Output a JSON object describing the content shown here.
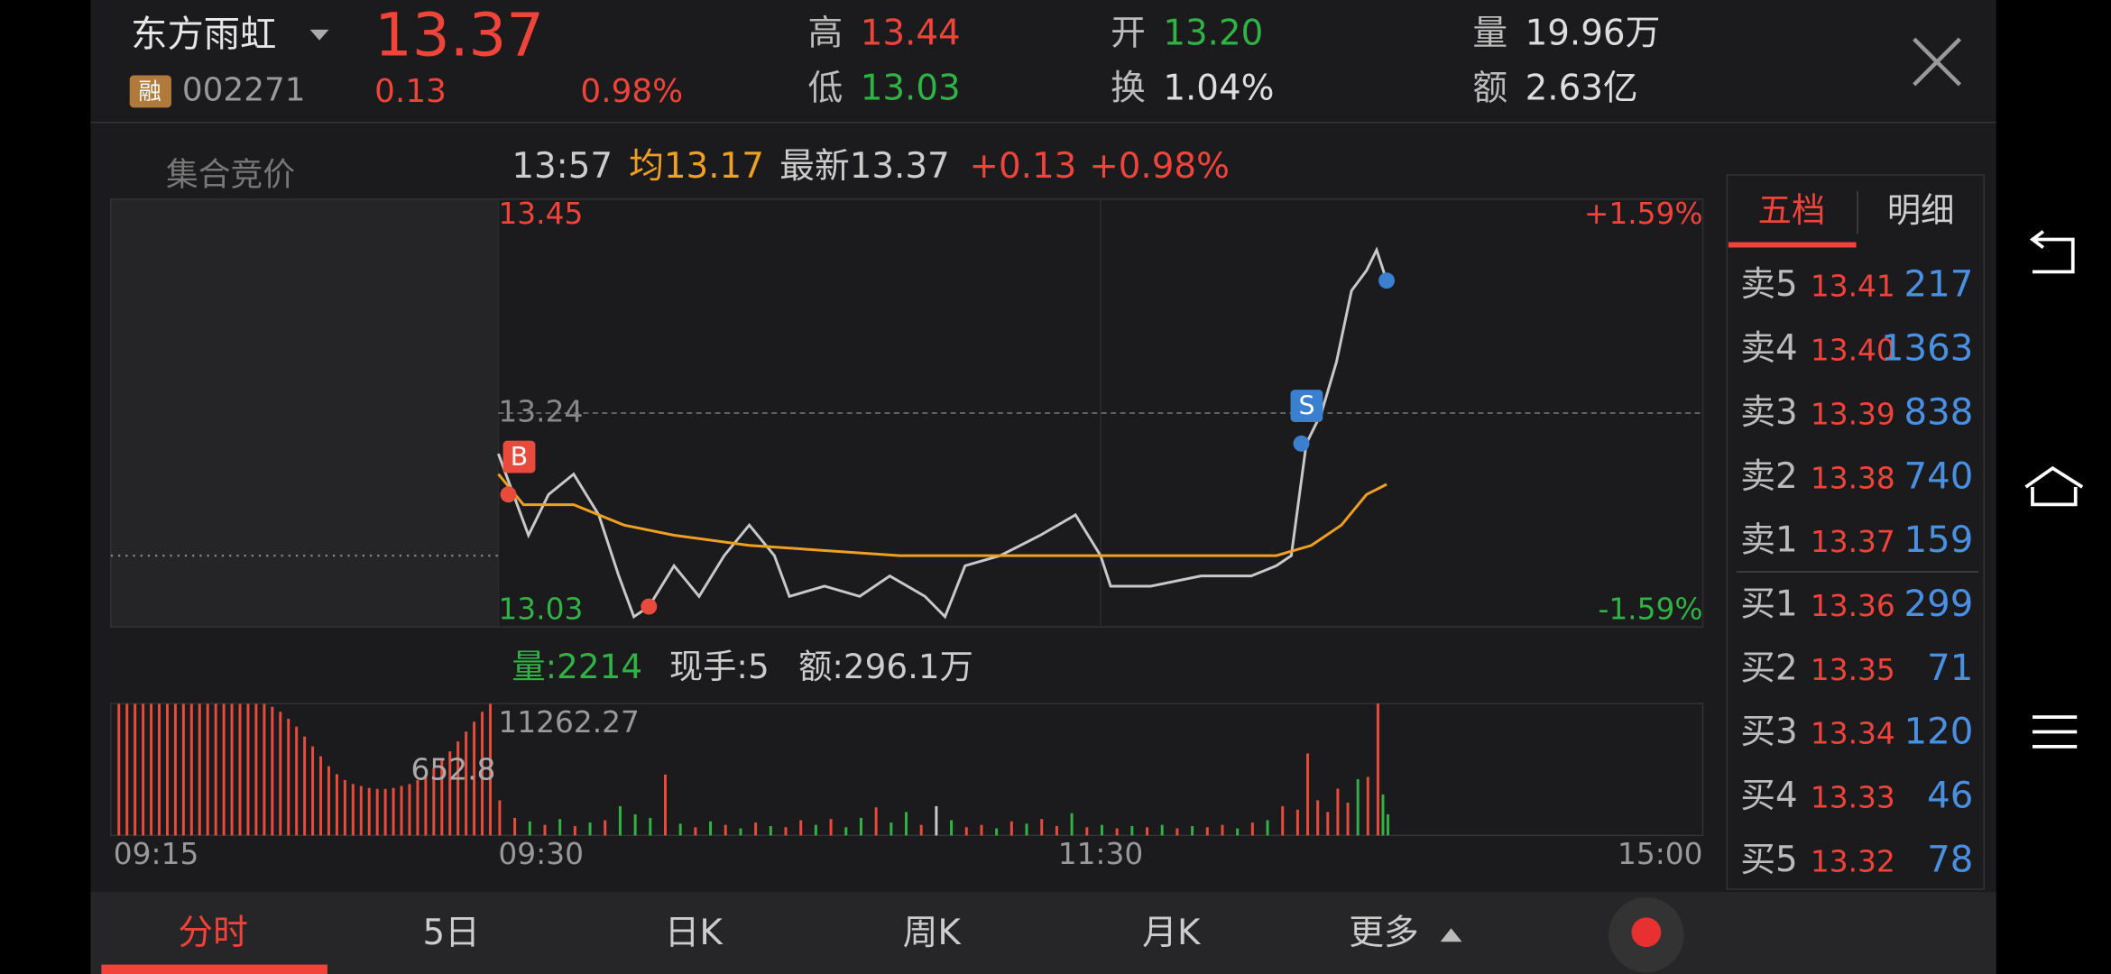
{
  "header": {
    "name": "东方雨虹",
    "price": "13.37",
    "change": "0.13",
    "change_pct": "0.98%",
    "badge": "融",
    "code": "002271",
    "high_label": "高",
    "high": "13.44",
    "low_label": "低",
    "low": "13.03",
    "open_label": "开",
    "open": "13.20",
    "turnover_label": "换",
    "turnover": "1.04%",
    "volume_label": "量",
    "volume": "19.96万",
    "amount_label": "额",
    "amount": "2.63亿"
  },
  "info_bar": {
    "auction": "集合竞价",
    "time": "13:57",
    "avg": "均13.17",
    "latest": "最新13.37",
    "change": "+0.13",
    "change_pct": "+0.98%"
  },
  "chart_data": {
    "type": "line",
    "xlim": [
      0,
      240
    ],
    "xticks": [
      {
        "value": 0,
        "label": "09:30"
      },
      {
        "value": 120,
        "label": "11:30"
      },
      {
        "value": 240,
        "label": "15:00"
      }
    ],
    "auction_time_label": "09:15",
    "ylim": [
      13.03,
      13.45
    ],
    "yticks": [
      13.03,
      13.24,
      13.45
    ],
    "pct_labels": [
      "-1.59%",
      "+1.59%"
    ],
    "grid": true,
    "series": [
      {
        "color": "#c8c8c8",
        "x": [
          0,
          3,
          6,
          10,
          15,
          20,
          24,
          27,
          30,
          35,
          40,
          45,
          50,
          55,
          58,
          65,
          72,
          78,
          85,
          89,
          93,
          100,
          108,
          115,
          120,
          122,
          130,
          140,
          150,
          155,
          158,
          161,
          164,
          167,
          170,
          173,
          175,
          177
        ],
        "values": [
          13.2,
          13.16,
          13.12,
          13.16,
          13.18,
          13.14,
          13.08,
          13.04,
          13.05,
          13.09,
          13.06,
          13.1,
          13.13,
          13.1,
          13.06,
          13.07,
          13.06,
          13.08,
          13.06,
          13.04,
          13.09,
          13.1,
          13.12,
          13.14,
          13.1,
          13.07,
          13.07,
          13.08,
          13.08,
          13.09,
          13.1,
          13.21,
          13.24,
          13.29,
          13.36,
          13.38,
          13.4,
          13.37
        ]
      },
      {
        "color": "#f0a020",
        "x": [
          0,
          5,
          15,
          25,
          35,
          50,
          80,
          120,
          155,
          162,
          168,
          173,
          177
        ],
        "values": [
          13.18,
          13.15,
          13.15,
          13.13,
          13.12,
          13.11,
          13.1,
          13.1,
          13.1,
          13.11,
          13.13,
          13.16,
          13.17
        ]
      }
    ],
    "trades": [
      {
        "label": "B",
        "x": 2,
        "y": 13.16,
        "color": "#e84b3c"
      },
      {
        "x": 30,
        "y": 13.05,
        "color": "#e84b3c"
      },
      {
        "label": "S",
        "x": 160,
        "y": 13.21,
        "color": "#3a7fd0"
      },
      {
        "x": 177,
        "y": 13.37,
        "color": "#3a7fd0"
      }
    ],
    "auction_price": 13.1,
    "volume_info": {
      "volume": "量:2214",
      "hand": "现手:5",
      "amount": "额:296.1万"
    },
    "volume_max": 11262.27,
    "auction_volume_label": 652.8,
    "auction_volumes": [
      1330,
      1330,
      1330,
      1330,
      1330,
      1330,
      1330,
      1330,
      1330,
      1330,
      1330,
      1330,
      1330,
      1330,
      1330,
      1330,
      1330,
      1330,
      1330,
      1300,
      1250,
      1180,
      1100,
      1000,
      900,
      800,
      700,
      620,
      560,
      520,
      500,
      480,
      470,
      470,
      480,
      500,
      520,
      560,
      610,
      680,
      760,
      850,
      950,
      1050,
      1150,
      1250,
      1330
    ],
    "volume_x": [
      0,
      3,
      6,
      9,
      12,
      15,
      18,
      21,
      24,
      27,
      30,
      33,
      36,
      39,
      42,
      45,
      48,
      51,
      54,
      57,
      60,
      63,
      66,
      69,
      72,
      75,
      78,
      81,
      84,
      87,
      90,
      93,
      96,
      99,
      102,
      105,
      108,
      111,
      114,
      117,
      120,
      123,
      126,
      129,
      132,
      135,
      138,
      141,
      144,
      147,
      150,
      153,
      156,
      159,
      161,
      163,
      165,
      167,
      169,
      171,
      173,
      175,
      176,
      177
    ],
    "volumes": [
      3000,
      1500,
      1200,
      900,
      1400,
      800,
      1100,
      1300,
      2500,
      1800,
      1500,
      5200,
      1000,
      700,
      1200,
      900,
      600,
      1100,
      800,
      700,
      1300,
      900,
      1400,
      700,
      1500,
      2400,
      1100,
      2000,
      900,
      2500,
      1300,
      700,
      900,
      600,
      1200,
      1000,
      1400,
      800,
      1900,
      700,
      900,
      600,
      800,
      700,
      900,
      600,
      800,
      700,
      900,
      600,
      1100,
      1300,
      2500,
      2200,
      7000,
      3000,
      2000,
      4000,
      2800,
      4800,
      5000,
      11262.27,
      3500,
      1800
    ],
    "volume_colors": [
      "#e84b3c",
      "#e84b3c",
      "#2fb344",
      "#e84b3c",
      "#2fb344",
      "#e84b3c",
      "#2fb344",
      "#e84b3c",
      "#2fb344",
      "#2fb344",
      "#2fb344",
      "#e84b3c",
      "#2fb344",
      "#e84b3c",
      "#2fb344",
      "#e84b3c",
      "#2fb344",
      "#e84b3c",
      "#2fb344",
      "#e84b3c",
      "#e84b3c",
      "#2fb344",
      "#e84b3c",
      "#2fb344",
      "#2fb344",
      "#e84b3c",
      "#2fb344",
      "#2fb344",
      "#e84b3c",
      "#c8c8c8",
      "#2fb344",
      "#e84b3c",
      "#e84b3c",
      "#2fb344",
      "#e84b3c",
      "#2fb344",
      "#e84b3c",
      "#e84b3c",
      "#2fb344",
      "#e84b3c",
      "#2fb344",
      "#e84b3c",
      "#2fb344",
      "#e84b3c",
      "#2fb344",
      "#e84b3c",
      "#2fb344",
      "#e84b3c",
      "#e84b3c",
      "#2fb344",
      "#e84b3c",
      "#2fb344",
      "#e84b3c",
      "#e84b3c",
      "#e84b3c",
      "#e84b3c",
      "#e84b3c",
      "#e84b3c",
      "#e84b3c",
      "#2fb344",
      "#e84b3c",
      "#e84b3c",
      "#2fb344",
      "#2fb344"
    ]
  },
  "order_book": {
    "tabs": [
      "五档",
      "明细"
    ],
    "rows": [
      {
        "label": "卖5",
        "price": "13.41",
        "qty": "217"
      },
      {
        "label": "卖4",
        "price": "13.40",
        "qty": "1363"
      },
      {
        "label": "卖3",
        "price": "13.39",
        "qty": "838"
      },
      {
        "label": "卖2",
        "price": "13.38",
        "qty": "740"
      },
      {
        "label": "卖1",
        "price": "13.37",
        "qty": "159"
      },
      {
        "label": "买1",
        "price": "13.36",
        "qty": "299"
      },
      {
        "label": "买2",
        "price": "13.35",
        "qty": "71"
      },
      {
        "label": "买3",
        "price": "13.34",
        "qty": "120"
      },
      {
        "label": "买4",
        "price": "13.33",
        "qty": "46"
      },
      {
        "label": "买5",
        "price": "13.32",
        "qty": "78"
      }
    ]
  },
  "tabs": [
    "分时",
    "5日",
    "日K",
    "周K",
    "月K",
    "更多"
  ]
}
